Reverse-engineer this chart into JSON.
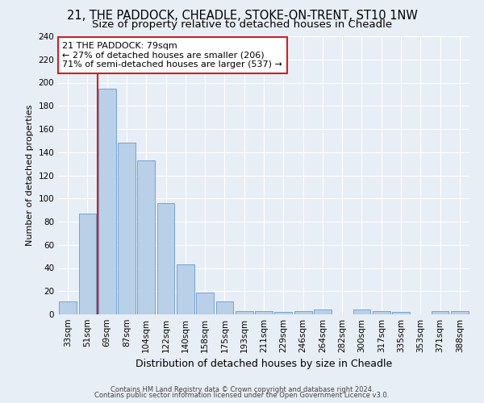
{
  "title1": "21, THE PADDOCK, CHEADLE, STOKE-ON-TRENT, ST10 1NW",
  "title2": "Size of property relative to detached houses in Cheadle",
  "xlabel": "Distribution of detached houses by size in Cheadle",
  "ylabel": "Number of detached properties",
  "categories": [
    "33sqm",
    "51sqm",
    "69sqm",
    "87sqm",
    "104sqm",
    "122sqm",
    "140sqm",
    "158sqm",
    "175sqm",
    "193sqm",
    "211sqm",
    "229sqm",
    "246sqm",
    "264sqm",
    "282sqm",
    "300sqm",
    "317sqm",
    "335sqm",
    "353sqm",
    "371sqm",
    "388sqm"
  ],
  "values": [
    11,
    87,
    195,
    148,
    133,
    96,
    43,
    19,
    11,
    3,
    3,
    2,
    3,
    4,
    0,
    4,
    3,
    2,
    0,
    3,
    3
  ],
  "bar_color": "#b8d0e8",
  "bar_edge_color": "#6699cc",
  "vline_color": "#cc2222",
  "annotation_text": "21 THE PADDOCK: 79sqm\n← 27% of detached houses are smaller (206)\n71% of semi-detached houses are larger (537) →",
  "annotation_box_color": "#ffffff",
  "annotation_box_edgecolor": "#cc2222",
  "ylim": [
    0,
    240
  ],
  "yticks": [
    0,
    20,
    40,
    60,
    80,
    100,
    120,
    140,
    160,
    180,
    200,
    220,
    240
  ],
  "footer1": "Contains HM Land Registry data © Crown copyright and database right 2024.",
  "footer2": "Contains public sector information licensed under the Open Government Licence v3.0.",
  "bg_color": "#e8eef5",
  "plot_bg_color": "#e8eef5",
  "title1_fontsize": 10.5,
  "title2_fontsize": 9.5,
  "ylabel_fontsize": 8,
  "xlabel_fontsize": 9,
  "tick_fontsize": 7.5,
  "annotation_fontsize": 8,
  "footer_fontsize": 6
}
